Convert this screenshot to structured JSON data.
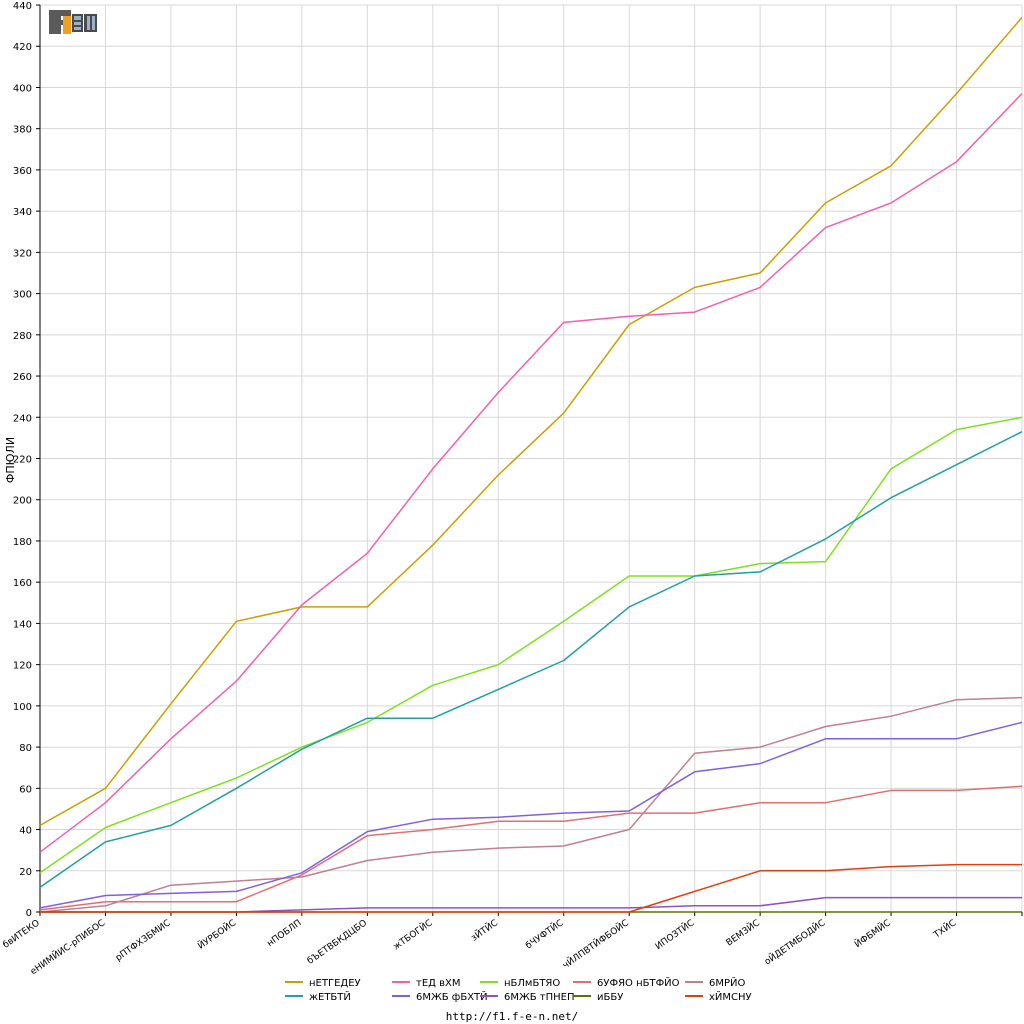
{
  "logo": {
    "text": "F1EN"
  },
  "footer": {
    "url": "http://f1.f-e-n.net/"
  },
  "chart_data": {
    "type": "line",
    "title": "",
    "xlabel": "",
    "ylabel": "ФПЮЛИ",
    "ylim": [
      0,
      440
    ],
    "yticks": [
      0,
      20,
      40,
      60,
      80,
      100,
      120,
      140,
      160,
      180,
      200,
      220,
      240,
      260,
      280,
      300,
      320,
      340,
      360,
      380,
      400,
      420,
      440
    ],
    "grid": true,
    "legend_position": "bottom-center",
    "categories": [
      "бвИТЕКО",
      "еНИМЙИС-рПИБОС",
      "рПТФХЗБМИС",
      "ЙУРБОЙС",
      "нПОБЛП",
      "бЪЕТВБКДЦБО",
      "жТБОГЙС",
      "зЙТЙС",
      "бЧУФТЙС",
      "чЙЛПВТЙФБОЙС",
      "ИПОЗТЙС",
      "ВЕМЗЙС",
      "оЙДЕТМБОДЙС",
      "ЙФБМЙС",
      "ТХЙС",
      ""
    ],
    "series": [
      {
        "name": "нЕТГЕДЕУ",
        "color": "#c8a000",
        "values": [
          42,
          60,
          101,
          141,
          148,
          148,
          178,
          212,
          242,
          285,
          303,
          310,
          344,
          362,
          397,
          434
        ]
      },
      {
        "name": "тЕД вХМ",
        "color": "#f060b0",
        "values": [
          29,
          53,
          84,
          112,
          149,
          174,
          215,
          252,
          286,
          289,
          291,
          303,
          332,
          344,
          364,
          397
        ]
      },
      {
        "name": "нБЛмБТЯО",
        "color": "#80e020",
        "values": [
          19,
          41,
          53,
          65,
          80,
          92,
          110,
          120,
          141,
          163,
          163,
          169,
          170,
          215,
          234,
          240
        ]
      },
      {
        "name": "6УФЯО нБТФЙО",
        "color": "#e07070",
        "values": [
          1,
          5,
          5,
          5,
          18,
          37,
          40,
          44,
          44,
          48,
          48,
          53,
          53,
          59,
          59,
          61
        ]
      },
      {
        "name": "6МРЙО",
        "color": "#c08090",
        "values": [
          0,
          3,
          13,
          15,
          17,
          25,
          29,
          31,
          32,
          40,
          77,
          80,
          90,
          95,
          103,
          104
        ]
      },
      {
        "name": "жЕТБТЙ",
        "color": "#20a0a0",
        "values": [
          12,
          34,
          42,
          60,
          79,
          94,
          94,
          108,
          122,
          148,
          163,
          165,
          181,
          201,
          217,
          233
        ]
      },
      {
        "name": "6МЖБ фБХТЙ",
        "color": "#8060e0",
        "values": [
          2,
          8,
          9,
          10,
          19,
          39,
          45,
          46,
          48,
          49,
          68,
          72,
          84,
          84,
          84,
          92
        ]
      },
      {
        "name": "6МЖБ тПНЕП",
        "color": "#9050c8",
        "values": [
          0,
          0,
          0,
          0,
          1,
          2,
          2,
          2,
          2,
          2,
          3,
          3,
          7,
          7,
          7,
          7
        ]
      },
      {
        "name": "иББУ",
        "color": "#607000",
        "values": [
          0,
          0,
          0,
          0,
          0,
          0,
          0,
          0,
          0,
          0,
          0,
          0,
          0,
          0,
          0,
          0
        ]
      },
      {
        "name": "хЙМСНУ",
        "color": "#e04010",
        "values": [
          0,
          0,
          0,
          0,
          0,
          0,
          0,
          0,
          0,
          0,
          10,
          20,
          20,
          22,
          23,
          23
        ]
      }
    ]
  }
}
